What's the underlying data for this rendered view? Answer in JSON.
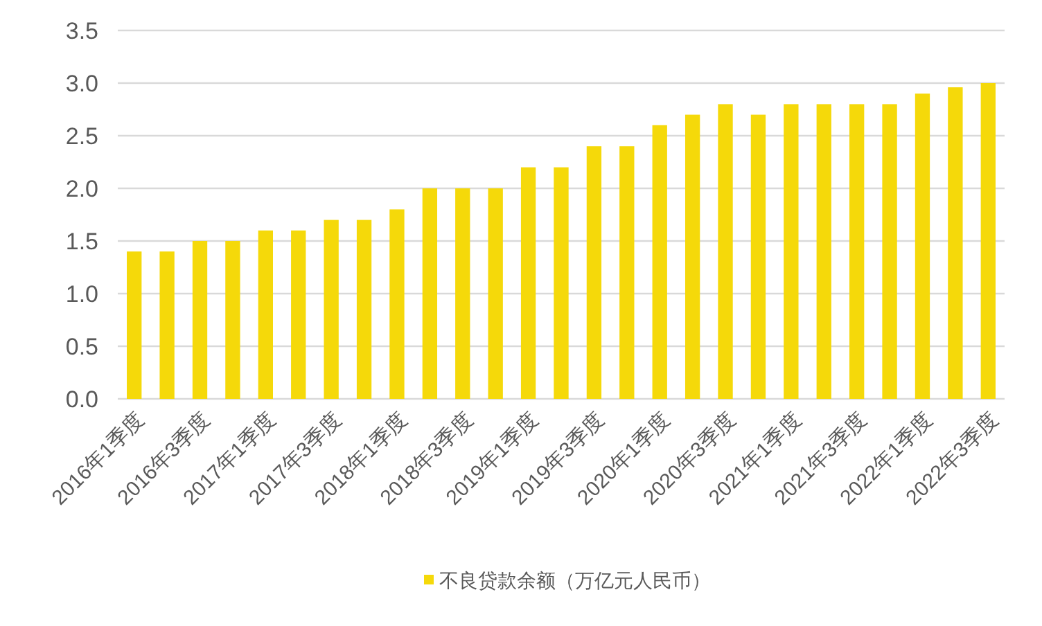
{
  "chart_data": {
    "type": "bar",
    "categories": [
      "2016年1季度",
      null,
      "2016年3季度",
      null,
      "2017年1季度",
      null,
      "2017年3季度",
      null,
      "2018年1季度",
      null,
      "2018年3季度",
      null,
      "2019年1季度",
      null,
      "2019年3季度",
      null,
      "2020年1季度",
      null,
      "2020年3季度",
      null,
      "2021年1季度",
      null,
      "2021年3季度",
      null,
      "2022年1季度",
      null,
      "2022年3季度"
    ],
    "series": [
      {
        "name": "不良贷款余额（万亿元人民币）",
        "color": "#f5d90a",
        "values": [
          1.4,
          1.4,
          1.5,
          1.5,
          1.6,
          1.6,
          1.7,
          1.7,
          1.8,
          2.0,
          2.0,
          2.0,
          2.2,
          2.2,
          2.4,
          2.4,
          2.6,
          2.7,
          2.8,
          2.7,
          2.8,
          2.8,
          2.8,
          2.8,
          2.9,
          2.96,
          3.0
        ]
      }
    ],
    "ylim": [
      0,
      3.5
    ],
    "yticks": [
      {
        "value": 0,
        "label": "0.0"
      },
      0.5,
      {
        "value": 1,
        "label": "1.0"
      },
      1.5,
      {
        "value": 2,
        "label": "2.0"
      },
      2.5,
      {
        "value": 3,
        "label": "3.0"
      },
      3.5
    ],
    "grid": "y",
    "legend": "bottom"
  }
}
